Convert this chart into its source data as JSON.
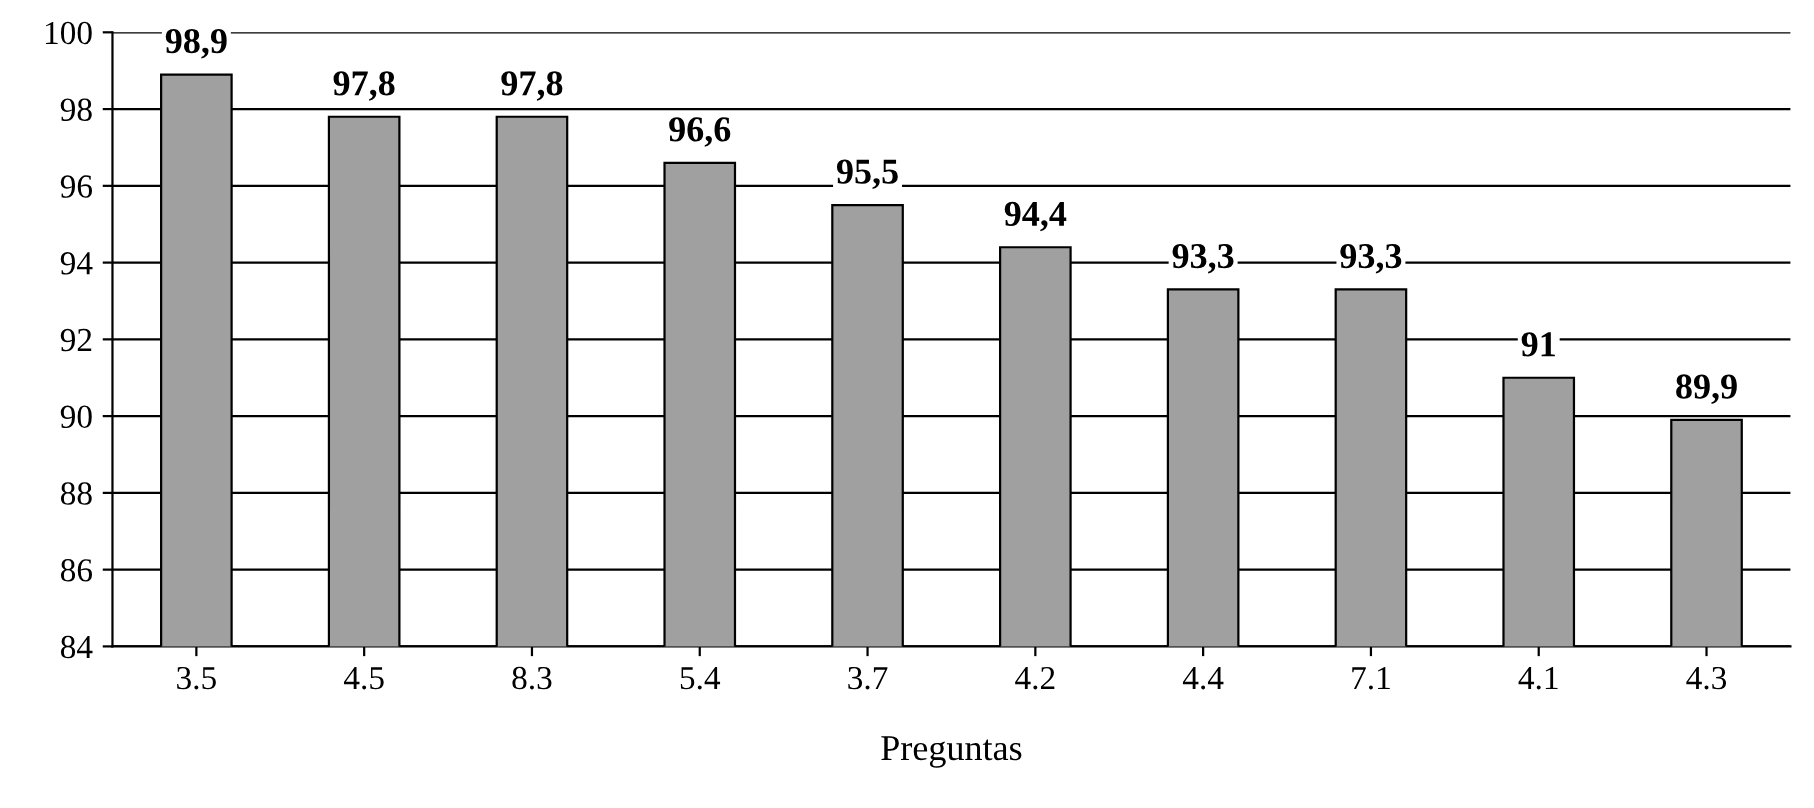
{
  "chart_data": {
    "type": "bar",
    "xlabel": "Preguntas",
    "categories": [
      "3.5",
      "4.5",
      "8.3",
      "5.4",
      "3.7",
      "4.2",
      "4.4",
      "7.1",
      "4.1",
      "4.3"
    ],
    "values": [
      98.9,
      97.8,
      97.8,
      96.6,
      95.5,
      94.4,
      93.3,
      93.3,
      91,
      89.9
    ],
    "value_labels": [
      "98,9",
      "97,8",
      "97,8",
      "96,6",
      "95,5",
      "94,4",
      "93,3",
      "93,3",
      "91",
      "89,9"
    ],
    "color": "#a0a0a0",
    "ylim": [
      84,
      100
    ],
    "yticks": [
      84,
      86,
      88,
      90,
      92,
      94,
      96,
      98,
      100
    ],
    "grid": "y"
  }
}
